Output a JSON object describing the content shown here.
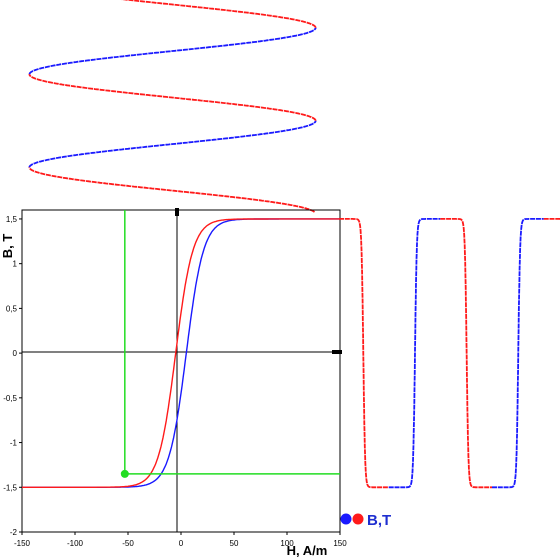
{
  "chart_data": {
    "type": "line",
    "title": "",
    "xlabel": "H, A/m",
    "ylabel": "B, T",
    "xlim": [
      -150,
      150
    ],
    "ylim": [
      -2,
      1.6
    ],
    "x_ticks": [
      "-150",
      "-100",
      "-50",
      "0",
      "50",
      "100",
      "150"
    ],
    "y_ticks": [
      "1,5",
      "1",
      "0,5",
      "0",
      "-0,5",
      "-1",
      "-1,5",
      "-2"
    ],
    "grid": false,
    "hysteresis": {
      "saturation_B": 1.5,
      "coercive_H": 5,
      "remanence_B": 0.45,
      "ascending_color": "#1a1aff",
      "descending_color": "#ff1a1a"
    },
    "marker": {
      "H": -53,
      "B": -1.35,
      "color": "#22dd22"
    },
    "h_waveform": {
      "description_units": "H, A/m vs time (vertical)",
      "amplitude": 150,
      "cycles": 2.3
    },
    "b_waveform": {
      "units": "B, T vs time",
      "min": -1.5,
      "max": 1.5,
      "cycles": 2.3
    },
    "legend": {
      "label": "B,T",
      "colors": [
        "#1a1aff",
        "#ff1a1a"
      ],
      "position": "bottom-right"
    }
  }
}
